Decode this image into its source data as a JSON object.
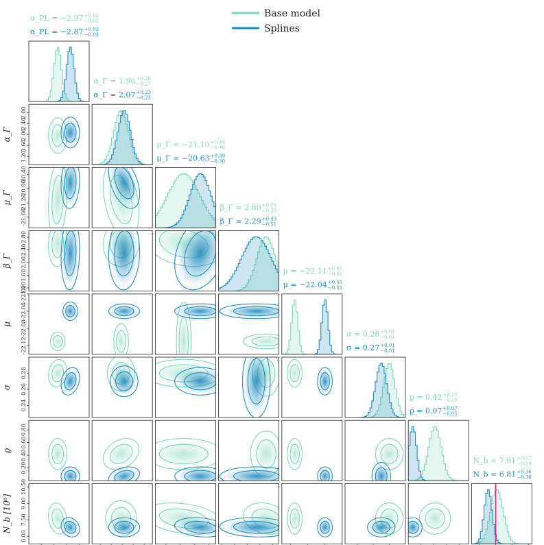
{
  "chart_data": {
    "type": "corner",
    "legend": {
      "placement": "top-center",
      "entries": [
        {
          "name": "Base model",
          "color": "#7fd6b8"
        },
        {
          "name": "Splines",
          "color": "#1f8bbf"
        }
      ]
    },
    "colors": {
      "base": "#7fd6b8",
      "splines": "#1f8bbf",
      "truth": "#e0218a",
      "frame": "#333333"
    },
    "parameters": [
      {
        "key": "alpha_pl",
        "label": "α_PL",
        "range": [
          -3.2,
          -2.72
        ],
        "ticks": [
          -3.1,
          -3.0,
          -2.9,
          -2.8
        ],
        "tick_labels": [
          "-3.10",
          "-3.00",
          "-2.90",
          "-2.80"
        ],
        "summary": [
          {
            "series": "Base model",
            "text": "α_PL = −2.97",
            "sup": "+0.03",
            "sub": "−0.03"
          },
          {
            "series": "Splines",
            "text": "α_PL = −2.87",
            "sup": "+0.03",
            "sub": "−0.03"
          }
        ],
        "posterior": [
          {
            "mean": -2.97,
            "sd": 0.03
          },
          {
            "mean": -2.87,
            "sd": 0.03
          }
        ]
      },
      {
        "key": "alpha_gamma",
        "label": "α_Γ",
        "range": [
          0.9,
          3.1
        ],
        "ticks": [
          1.2,
          1.6,
          2.0,
          2.4,
          2.8
        ],
        "tick_labels": [
          "1.20",
          "1.60",
          "2.00",
          "2.40",
          "2.80"
        ],
        "summary": [
          {
            "series": "Base model",
            "text": "α_Γ = 1.96",
            "sup": "+0.26",
            "sub": "−0.27"
          },
          {
            "series": "Splines",
            "text": "α_Γ = 2.07",
            "sup": "+0.23",
            "sub": "−0.23"
          }
        ],
        "posterior": [
          {
            "mean": 1.96,
            "sd": 0.265
          },
          {
            "mean": 2.07,
            "sd": 0.23
          }
        ]
      },
      {
        "key": "mu_gamma",
        "label": "μ_Γ",
        "range": [
          -21.9,
          -20.2
        ],
        "ticks": [
          -21.6,
          -21.2,
          -20.8,
          -20.4
        ],
        "tick_labels": [
          "-21.60",
          "-21.20",
          "-20.80",
          "-20.40"
        ],
        "summary": [
          {
            "series": "Base model",
            "text": "μ_Γ = −21.10",
            "sup": "+0.44",
            "sub": "−0.46"
          },
          {
            "series": "Splines",
            "text": "μ_Γ = −20.63",
            "sup": "+0.29",
            "sub": "−0.30"
          }
        ],
        "posterior": [
          {
            "mean": -21.1,
            "sd": 0.45
          },
          {
            "mean": -20.63,
            "sd": 0.295
          }
        ]
      },
      {
        "key": "beta_gamma",
        "label": "β_Γ",
        "range": [
          1.1,
          3.0
        ],
        "ticks": [
          1.2,
          1.6,
          2.0,
          2.4,
          2.8
        ],
        "tick_labels": [
          "1.20",
          "1.60",
          "2.00",
          "2.40",
          "2.80"
        ],
        "summary": [
          {
            "series": "Base model",
            "text": "β_Γ = 2.60",
            "sup": "+0.26",
            "sub": "−0.33"
          },
          {
            "series": "Splines",
            "text": "β_Γ = 2.29",
            "sup": "+0.43",
            "sub": "−0.51"
          }
        ],
        "posterior": [
          {
            "mean": 2.6,
            "sd": 0.295
          },
          {
            "mean": 2.29,
            "sd": 0.47
          }
        ]
      },
      {
        "key": "mu",
        "label": "μ",
        "range": [
          -22.14,
          -22.0
        ],
        "ticks": [
          -22.12,
          -22.08,
          -22.04,
          -22.0
        ],
        "tick_labels": [
          "-22.12",
          "-22.08",
          "-22.04",
          "-22.00"
        ],
        "summary": [
          {
            "series": "Base model",
            "text": "μ = −22.11",
            "sup": "+0.01",
            "sub": "−0.01"
          },
          {
            "series": "Splines",
            "text": "μ = −22.04",
            "sup": "+0.01",
            "sub": "−0.01"
          }
        ],
        "posterior": [
          {
            "mean": -22.11,
            "sd": 0.007
          },
          {
            "mean": -22.04,
            "sd": 0.007
          }
        ]
      },
      {
        "key": "sigma",
        "label": "σ",
        "range": [
          0.225,
          0.3
        ],
        "ticks": [
          0.24,
          0.26,
          0.28
        ],
        "tick_labels": [
          "0.24",
          "0.26",
          "0.28"
        ],
        "summary": [
          {
            "series": "Base model",
            "text": "σ = 0.28",
            "sup": "+0.01",
            "sub": "−0.01"
          },
          {
            "series": "Splines",
            "text": "σ = 0.27",
            "sup": "+0.01",
            "sub": "−0.01"
          }
        ],
        "posterior": [
          {
            "mean": 0.28,
            "sd": 0.007
          },
          {
            "mean": 0.27,
            "sd": 0.007
          }
        ]
      },
      {
        "key": "rho",
        "label": "ϱ",
        "range": [
          0.0,
          0.95
        ],
        "ticks": [
          0.2,
          0.4,
          0.6,
          0.8
        ],
        "tick_labels": [
          "0.20",
          "0.40",
          "0.60",
          "0.80"
        ],
        "summary": [
          {
            "series": "Base model",
            "text": "ϱ = 0.42",
            "sup": "+0.10",
            "sub": "−0.10"
          },
          {
            "series": "Splines",
            "text": "ϱ = 0.07",
            "sup": "+0.07",
            "sub": "−0.05"
          }
        ],
        "posterior": [
          {
            "mean": 0.42,
            "sd": 0.1
          },
          {
            "mean": 0.07,
            "sd": 0.06
          }
        ]
      },
      {
        "key": "n_b",
        "label": "N_b [10⁶]",
        "range": [
          5.3,
          10.8
        ],
        "ticks": [
          6.0,
          7.5,
          9.0,
          10.5
        ],
        "tick_labels": [
          "6.00",
          "7.50",
          "9.00",
          "10.50"
        ],
        "summary": [
          {
            "series": "Base model",
            "text": "N_b = 7.61",
            "sup": "+0.57",
            "sub": "−0.59"
          },
          {
            "series": "Splines",
            "text": "N_b = 6.81",
            "sup": "+0.36",
            "sub": "−0.36"
          }
        ],
        "posterior": [
          {
            "mean": 7.61,
            "sd": 0.58
          },
          {
            "mean": 6.81,
            "sd": 0.36
          }
        ],
        "truth": 7.5
      }
    ]
  }
}
